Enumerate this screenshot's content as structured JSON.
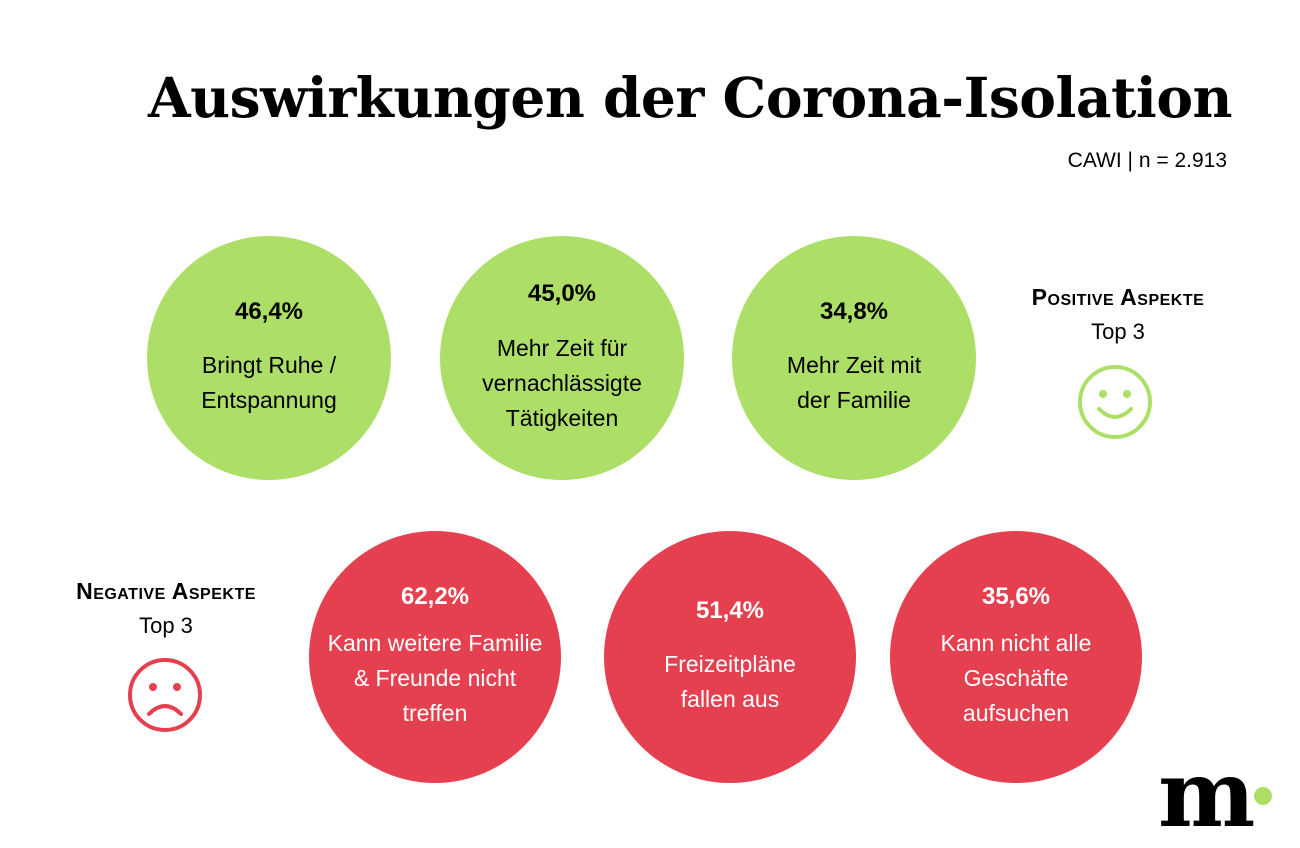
{
  "header": {
    "title": "Auswirkungen der Corona-Isolation",
    "meta": "CAWI | n = 2.913"
  },
  "positive": {
    "heading": "Positive Aspekte",
    "subheading": "Top 3",
    "color": "#addf68",
    "icon": "smiley-happy-icon"
  },
  "negative": {
    "heading": "Negative Aspekte",
    "subheading": "Top 3",
    "color": "#e5404f",
    "icon": "smiley-sad-icon"
  },
  "logo": {
    "letter": "m",
    "dot_color": "#addf68"
  },
  "chart_data": [
    {
      "type": "bubble",
      "name": "Positive Aspekte Top 3",
      "items": [
        {
          "value": 46.4,
          "value_label": "46,4%",
          "label": "Bringt Ruhe / Entspannung"
        },
        {
          "value": 45.0,
          "value_label": "45,0%",
          "label": "Mehr Zeit für vernachlässigte Tätigkeiten"
        },
        {
          "value": 34.8,
          "value_label": "34,8%",
          "label": "Mehr Zeit mit der Familie"
        }
      ]
    },
    {
      "type": "bubble",
      "name": "Negative Aspekte Top 3",
      "items": [
        {
          "value": 62.2,
          "value_label": "62,2%",
          "label": "Kann weitere Familie & Freunde nicht treffen"
        },
        {
          "value": 51.4,
          "value_label": "51,4%",
          "label": "Freizeitpläne fallen aus"
        },
        {
          "value": 35.6,
          "value_label": "35,6%",
          "label": "Kann nicht alle Geschäfte aufsuchen"
        }
      ]
    }
  ]
}
